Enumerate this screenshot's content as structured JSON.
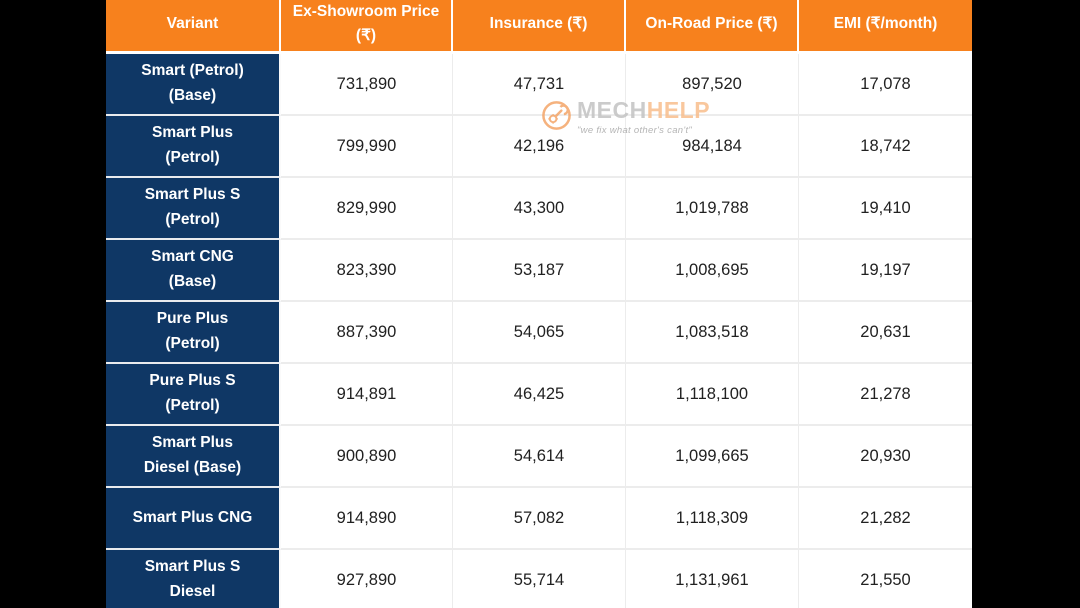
{
  "background_color": "#000000",
  "colors": {
    "header_bg": "#F7811D",
    "header_text": "#FFFFFF",
    "variant_bg": "#0F3765",
    "variant_text": "#FFFFFF",
    "cell_bg": "#FFFFFF",
    "cell_text": "#212121",
    "grid_line": "#ECECEC",
    "header_divider": "#FFFFFF"
  },
  "watermark": {
    "icon": "gear-wrench-icon",
    "brand_primary": "MECH",
    "brand_accent": "HELP",
    "tagline": "\"we fix what other's can't\"",
    "accent_color": "#F4A568"
  },
  "table": {
    "columns": [
      {
        "key": "variant",
        "label": "Variant"
      },
      {
        "key": "ex_showroom_price",
        "label": "Ex-Showroom Price (₹)"
      },
      {
        "key": "insurance",
        "label": "Insurance (₹)"
      },
      {
        "key": "on_road_price",
        "label": "On-Road Price (₹)"
      },
      {
        "key": "emi",
        "label": "EMI (₹/month)"
      }
    ],
    "rows": [
      {
        "variant": "Smart (Petrol) (Base)",
        "ex_showroom_price": "731,890",
        "insurance": "47,731",
        "on_road_price": "897,520",
        "emi": "17,078"
      },
      {
        "variant": "Smart Plus (Petrol)",
        "ex_showroom_price": "799,990",
        "insurance": "42,196",
        "on_road_price": "984,184",
        "emi": "18,742"
      },
      {
        "variant": "Smart Plus S (Petrol)",
        "ex_showroom_price": "829,990",
        "insurance": "43,300",
        "on_road_price": "1,019,788",
        "emi": "19,410"
      },
      {
        "variant": "Smart CNG (Base)",
        "ex_showroom_price": "823,390",
        "insurance": "53,187",
        "on_road_price": "1,008,695",
        "emi": "19,197"
      },
      {
        "variant": "Pure Plus (Petrol)",
        "ex_showroom_price": "887,390",
        "insurance": "54,065",
        "on_road_price": "1,083,518",
        "emi": "20,631"
      },
      {
        "variant": "Pure Plus S (Petrol)",
        "ex_showroom_price": "914,891",
        "insurance": "46,425",
        "on_road_price": "1,118,100",
        "emi": "21,278"
      },
      {
        "variant": "Smart Plus Diesel (Base)",
        "ex_showroom_price": "900,890",
        "insurance": "54,614",
        "on_road_price": "1,099,665",
        "emi": "20,930"
      },
      {
        "variant": "Smart Plus CNG",
        "ex_showroom_price": "914,890",
        "insurance": "57,082",
        "on_road_price": "1,118,309",
        "emi": "21,282"
      },
      {
        "variant": "Smart Plus S Diesel",
        "ex_showroom_price": "927,890",
        "insurance": "55,714",
        "on_road_price": "1,131,961",
        "emi": "21,550"
      }
    ]
  },
  "chart_data": {
    "type": "table",
    "title": "",
    "columns": [
      "Variant",
      "Ex-Showroom Price (₹)",
      "Insurance (₹)",
      "On-Road Price (₹)",
      "EMI (₹/month)"
    ],
    "rows": [
      [
        "Smart (Petrol) (Base)",
        731890,
        47731,
        897520,
        17078
      ],
      [
        "Smart Plus (Petrol)",
        799990,
        42196,
        984184,
        18742
      ],
      [
        "Smart Plus S (Petrol)",
        829990,
        43300,
        1019788,
        19410
      ],
      [
        "Smart CNG (Base)",
        823390,
        53187,
        1008695,
        19197
      ],
      [
        "Pure Plus (Petrol)",
        887390,
        54065,
        1083518,
        20631
      ],
      [
        "Pure Plus S (Petrol)",
        914891,
        46425,
        1118100,
        21278
      ],
      [
        "Smart Plus Diesel (Base)",
        900890,
        54614,
        1099665,
        20930
      ],
      [
        "Smart Plus CNG",
        914890,
        57082,
        1118309,
        21282
      ],
      [
        "Smart Plus S Diesel",
        927890,
        55714,
        1131961,
        21550
      ]
    ]
  }
}
